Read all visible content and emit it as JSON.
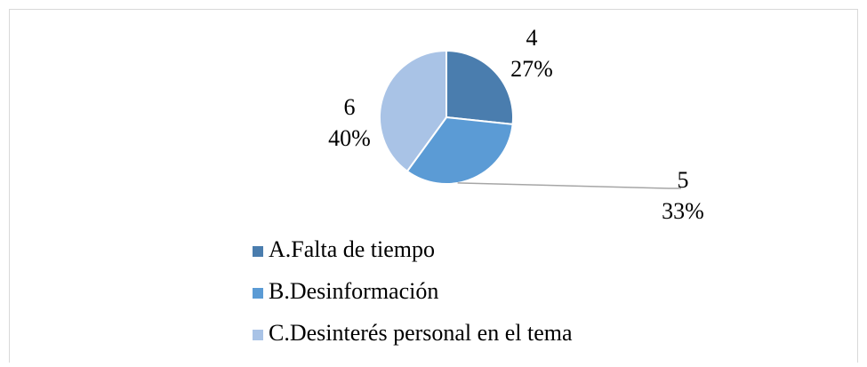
{
  "chart_data": {
    "type": "pie",
    "categories": [
      "A.Falta de tiempo",
      "B.Desinformación",
      "C.Desinterés personal en el tema"
    ],
    "values": [
      4,
      5,
      6
    ],
    "percent_labels": [
      "27%",
      "33%",
      "40%"
    ],
    "colors": [
      "#4a7dae",
      "#5b9bd5",
      "#a9c3e6"
    ],
    "legend": "bottom"
  }
}
